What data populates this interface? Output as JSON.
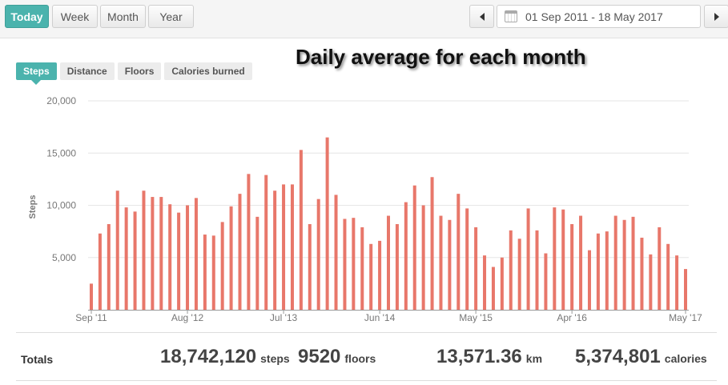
{
  "toolbar": {
    "today_label": "Today",
    "week_label": "Week",
    "month_label": "Month",
    "year_label": "Year",
    "date_range": "01 Sep 2011 - 18 May 2017"
  },
  "tabs": [
    {
      "label": "Steps",
      "active": true
    },
    {
      "label": "Distance",
      "active": false
    },
    {
      "label": "Floors",
      "active": false
    },
    {
      "label": "Calories burned",
      "active": false
    }
  ],
  "headline": "Daily average for each month",
  "accent_color": "#4bb3ad",
  "bar_color": "#e8776a",
  "chart_data": {
    "type": "bar",
    "ylabel": "Steps",
    "xlabel": "",
    "ylim": [
      0,
      20000
    ],
    "yticks": [
      "5,000",
      "10,000",
      "15,000",
      "20,000"
    ],
    "ytick_values": [
      5000,
      10000,
      15000,
      20000
    ],
    "xtick_labels": [
      {
        "label": "Sep '11",
        "index": 0
      },
      {
        "label": "Aug '12",
        "index": 11
      },
      {
        "label": "Jul '13",
        "index": 22
      },
      {
        "label": "Jun '14",
        "index": 33
      },
      {
        "label": "May '15",
        "index": 44
      },
      {
        "label": "Apr '16",
        "index": 55
      },
      {
        "label": "May '17",
        "index": 68
      }
    ],
    "categories": [
      "2011-09",
      "2011-10",
      "2011-11",
      "2011-12",
      "2012-01",
      "2012-02",
      "2012-03",
      "2012-04",
      "2012-05",
      "2012-06",
      "2012-07",
      "2012-08",
      "2012-09",
      "2012-10",
      "2012-11",
      "2012-12",
      "2013-01",
      "2013-02",
      "2013-03",
      "2013-04",
      "2013-05",
      "2013-06",
      "2013-07",
      "2013-08",
      "2013-09",
      "2013-10",
      "2013-11",
      "2013-12",
      "2014-01",
      "2014-02",
      "2014-03",
      "2014-04",
      "2014-05",
      "2014-06",
      "2014-07",
      "2014-08",
      "2014-09",
      "2014-10",
      "2014-11",
      "2014-12",
      "2015-01",
      "2015-02",
      "2015-03",
      "2015-04",
      "2015-05",
      "2015-06",
      "2015-07",
      "2015-08",
      "2015-09",
      "2015-10",
      "2015-11",
      "2015-12",
      "2016-01",
      "2016-02",
      "2016-03",
      "2016-04",
      "2016-05",
      "2016-06",
      "2016-07",
      "2016-08",
      "2016-09",
      "2016-10",
      "2016-11",
      "2016-12",
      "2017-01",
      "2017-02",
      "2017-03",
      "2017-04",
      "2017-05"
    ],
    "values": [
      2500,
      7300,
      8200,
      11400,
      9800,
      9400,
      11400,
      10800,
      10800,
      10100,
      9300,
      10000,
      10700,
      7200,
      7100,
      8400,
      9900,
      11100,
      13000,
      8900,
      12900,
      11400,
      12000,
      12000,
      15300,
      8200,
      10600,
      16500,
      11000,
      8700,
      8800,
      7900,
      6300,
      6600,
      9000,
      8200,
      10300,
      11900,
      10000,
      12700,
      9000,
      8600,
      11100,
      9700,
      7900,
      5200,
      4100,
      5000,
      7600,
      6800,
      9700,
      7600,
      5400,
      9800,
      9600,
      8200,
      9000,
      5700,
      7300,
      7500,
      9000,
      8600,
      8900,
      6900,
      5300,
      7900,
      6300,
      5200,
      3900
    ]
  },
  "totals": {
    "label": "Totals",
    "steps_value": "18,742,120",
    "steps_unit": "steps",
    "floors_value": "9520",
    "floors_unit": "floors",
    "distance_value": "13,571.36",
    "distance_unit": "km",
    "calories_value": "5,374,801",
    "calories_unit": "calories"
  }
}
